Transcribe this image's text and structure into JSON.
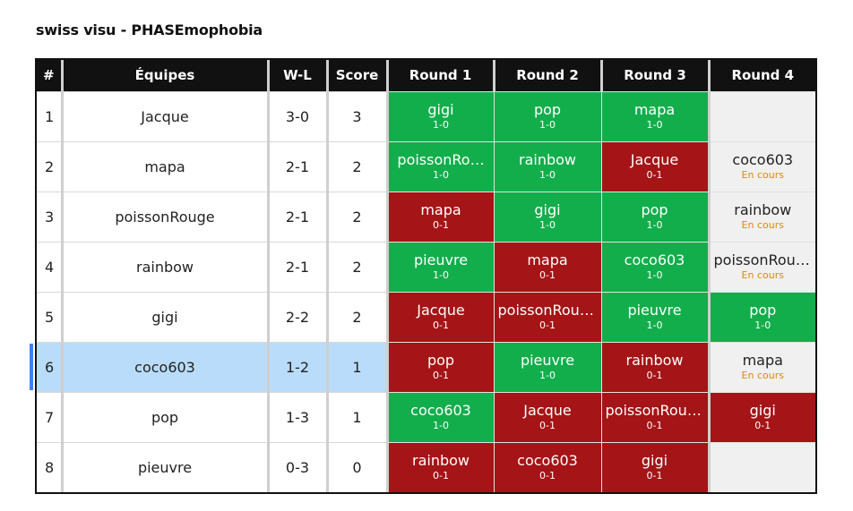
{
  "title": "swiss visu - PHASEmophobia",
  "headers": [
    "#",
    "Équipes",
    "W-L",
    "Score",
    "Round 1",
    "Round 2",
    "Round 3",
    "Round 4"
  ],
  "rows": [
    {
      "rank": "1",
      "team": "Jacque",
      "wl": "3-0",
      "score": "3",
      "rounds": [
        {
          "opp": "gigi",
          "res": "1-0",
          "status": "win"
        },
        {
          "opp": "pop",
          "res": "1-0",
          "status": "win"
        },
        {
          "opp": "mapa",
          "res": "1-0",
          "status": "win"
        },
        {
          "opp": "",
          "res": "",
          "status": "empty"
        }
      ]
    },
    {
      "rank": "2",
      "team": "mapa",
      "wl": "2-1",
      "score": "2",
      "rounds": [
        {
          "opp": "poissonRo…",
          "res": "1-0",
          "status": "win"
        },
        {
          "opp": "rainbow",
          "res": "1-0",
          "status": "win"
        },
        {
          "opp": "Jacque",
          "res": "0-1",
          "status": "loss"
        },
        {
          "opp": "coco603",
          "res": "En cours",
          "status": "pending"
        }
      ]
    },
    {
      "rank": "3",
      "team": "poissonRouge",
      "wl": "2-1",
      "score": "2",
      "rounds": [
        {
          "opp": "mapa",
          "res": "0-1",
          "status": "loss"
        },
        {
          "opp": "gigi",
          "res": "1-0",
          "status": "win"
        },
        {
          "opp": "pop",
          "res": "1-0",
          "status": "win"
        },
        {
          "opp": "rainbow",
          "res": "En cours",
          "status": "pending"
        }
      ]
    },
    {
      "rank": "4",
      "team": "rainbow",
      "wl": "2-1",
      "score": "2",
      "rounds": [
        {
          "opp": "pieuvre",
          "res": "1-0",
          "status": "win"
        },
        {
          "opp": "mapa",
          "res": "0-1",
          "status": "loss"
        },
        {
          "opp": "coco603",
          "res": "1-0",
          "status": "win"
        },
        {
          "opp": "poissonRouge",
          "res": "En cours",
          "status": "pending"
        }
      ]
    },
    {
      "rank": "5",
      "team": "gigi",
      "wl": "2-2",
      "score": "2",
      "rounds": [
        {
          "opp": "Jacque",
          "res": "0-1",
          "status": "loss"
        },
        {
          "opp": "poissonRouge",
          "res": "0-1",
          "status": "loss"
        },
        {
          "opp": "pieuvre",
          "res": "1-0",
          "status": "win"
        },
        {
          "opp": "pop",
          "res": "1-0",
          "status": "win"
        }
      ]
    },
    {
      "rank": "6",
      "team": "coco603",
      "wl": "1-2",
      "score": "1",
      "selected": true,
      "rounds": [
        {
          "opp": "pop",
          "res": "0-1",
          "status": "loss"
        },
        {
          "opp": "pieuvre",
          "res": "1-0",
          "status": "win"
        },
        {
          "opp": "rainbow",
          "res": "0-1",
          "status": "loss"
        },
        {
          "opp": "mapa",
          "res": "En cours",
          "status": "pending"
        }
      ]
    },
    {
      "rank": "7",
      "team": "pop",
      "wl": "1-3",
      "score": "1",
      "rounds": [
        {
          "opp": "coco603",
          "res": "1-0",
          "status": "win"
        },
        {
          "opp": "Jacque",
          "res": "0-1",
          "status": "loss"
        },
        {
          "opp": "poissonRouge",
          "res": "0-1",
          "status": "loss"
        },
        {
          "opp": "gigi",
          "res": "0-1",
          "status": "loss"
        }
      ]
    },
    {
      "rank": "8",
      "team": "pieuvre",
      "wl": "0-3",
      "score": "0",
      "rounds": [
        {
          "opp": "rainbow",
          "res": "0-1",
          "status": "loss"
        },
        {
          "opp": "coco603",
          "res": "0-1",
          "status": "loss"
        },
        {
          "opp": "gigi",
          "res": "0-1",
          "status": "loss"
        },
        {
          "opp": "",
          "res": "",
          "status": "empty"
        }
      ]
    }
  ],
  "colors": {
    "win": "#12ae4b",
    "loss": "#a51416",
    "pending_text": "#e08a00",
    "selected_row": "#b9dcfa",
    "header_bg": "#111111"
  }
}
